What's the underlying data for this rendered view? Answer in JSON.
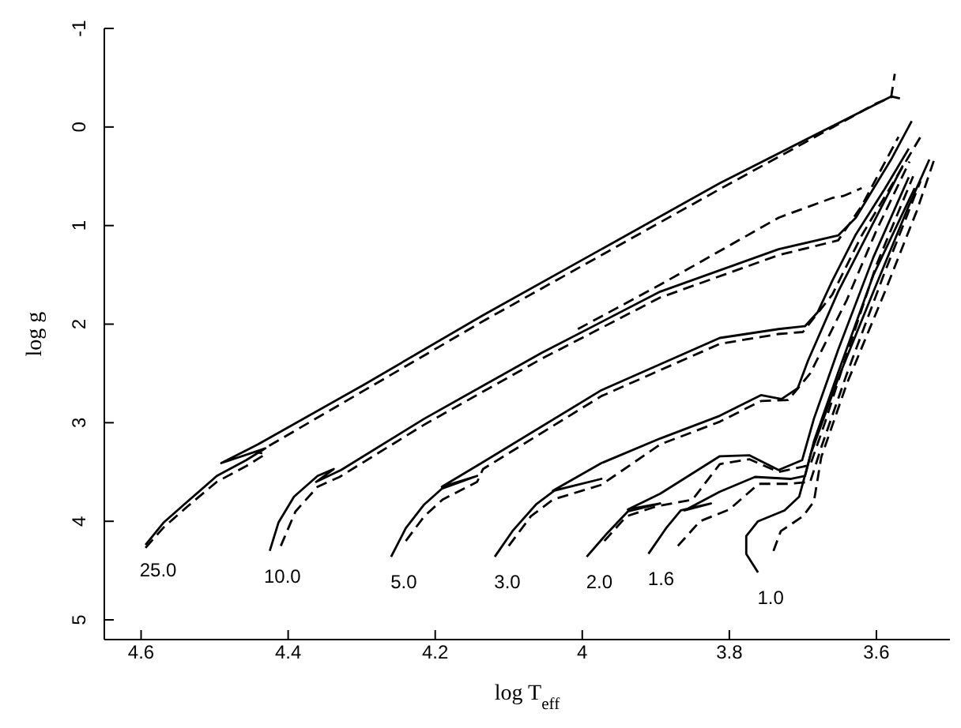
{
  "chart_data": {
    "type": "line",
    "xlabel": "log T$_{eff}$",
    "ylabel": "log g",
    "xlim": [
      4.65,
      3.5
    ],
    "ylim": [
      5.2,
      -1
    ],
    "xticks": [
      4.6,
      4.4,
      4.2,
      4,
      3.8,
      3.6
    ],
    "yticks": [
      -1,
      0,
      1,
      2,
      3,
      4,
      5
    ],
    "grid": false,
    "legend": false,
    "marker": "none",
    "series": [
      {
        "color": "#000000",
        "line_style": "solid",
        "x": [
          4.594,
          4.569,
          4.537,
          4.497,
          4.457,
          4.431,
          4.491,
          4.441,
          4.296,
          4.135,
          3.974,
          3.813,
          3.58,
          3.568
        ],
        "values": [
          4.24,
          4.01,
          3.8,
          3.54,
          3.38,
          3.26,
          3.41,
          3.22,
          2.61,
          1.91,
          1.24,
          0.57,
          -0.31,
          -0.29
        ]
      },
      {
        "color": "#000000",
        "line_style": "dashed",
        "x": [
          4.594,
          4.569,
          4.537,
          4.497,
          4.457,
          4.431,
          4.441,
          4.296,
          4.135,
          3.974,
          3.813,
          3.6,
          3.58,
          3.575
        ],
        "values": [
          4.27,
          4.06,
          3.85,
          3.6,
          3.44,
          3.32,
          3.3,
          2.67,
          1.97,
          1.3,
          0.63,
          -0.24,
          -0.3,
          -0.54
        ]
      },
      {
        "color": "#000000",
        "line_style": "solid",
        "x": [
          4.425,
          4.413,
          4.392,
          4.36,
          4.338,
          4.362,
          4.328,
          4.215,
          4.055,
          3.894,
          3.733,
          3.652,
          3.628,
          3.58,
          3.552
        ],
        "values": [
          4.3,
          4.01,
          3.75,
          3.54,
          3.47,
          3.6,
          3.48,
          2.96,
          2.29,
          1.67,
          1.24,
          1.1,
          0.92,
          0.33,
          -0.06
        ]
      },
      {
        "color": "#000000",
        "line_style": "dashed",
        "x": [
          4.41,
          4.39,
          4.36,
          4.33,
          4.215,
          4.055,
          3.894,
          3.733,
          3.652,
          3.62,
          3.57
        ],
        "values": [
          4.25,
          3.9,
          3.65,
          3.55,
          3.02,
          2.35,
          1.73,
          1.3,
          1.15,
          0.8,
          0.1
        ]
      },
      {
        "color": "#000000",
        "line_style": "dashed",
        "x": [
          4.006,
          3.894,
          3.733,
          3.66,
          3.645,
          3.62
        ],
        "values": [
          2.05,
          1.6,
          0.92,
          0.72,
          0.7,
          0.62
        ]
      },
      {
        "color": "#000000",
        "line_style": "solid",
        "x": [
          4.26,
          4.24,
          4.215,
          4.191,
          4.143,
          4.191,
          4.135,
          3.974,
          3.813,
          3.733,
          3.697,
          3.68,
          3.66,
          3.628,
          3.588,
          3.556
        ],
        "values": [
          4.36,
          4.07,
          3.83,
          3.67,
          3.54,
          3.65,
          3.4,
          2.67,
          2.14,
          2.05,
          2.02,
          1.88,
          1.56,
          1.09,
          0.62,
          0.22
        ]
      },
      {
        "color": "#000000",
        "line_style": "dashed",
        "x": [
          4.24,
          4.215,
          4.19,
          4.143,
          4.135,
          3.974,
          3.813,
          3.733,
          3.7,
          3.66,
          3.62,
          3.58,
          3.54
        ],
        "values": [
          4.2,
          3.95,
          3.78,
          3.6,
          3.47,
          2.73,
          2.2,
          2.1,
          2.08,
          1.7,
          1.1,
          0.6,
          0.1
        ]
      },
      {
        "color": "#000000",
        "line_style": "solid",
        "x": [
          4.119,
          4.095,
          4.063,
          4.038,
          3.974,
          4.04,
          3.974,
          3.894,
          3.813,
          3.757,
          3.729,
          3.707,
          3.693,
          3.652,
          3.604,
          3.564
        ],
        "values": [
          4.36,
          4.1,
          3.83,
          3.69,
          3.57,
          3.69,
          3.41,
          3.16,
          2.93,
          2.72,
          2.76,
          2.65,
          2.37,
          1.67,
          0.97,
          0.39
        ]
      },
      {
        "color": "#000000",
        "line_style": "dashed",
        "x": [
          4.1,
          4.07,
          4.04,
          3.974,
          3.894,
          3.813,
          3.757,
          3.72,
          3.69,
          3.64,
          3.6,
          3.555
        ],
        "values": [
          4.25,
          3.95,
          3.78,
          3.63,
          3.22,
          2.99,
          2.78,
          2.77,
          2.5,
          1.75,
          1.05,
          0.35
        ]
      },
      {
        "color": "#000000",
        "line_style": "solid",
        "x": [
          3.994,
          3.966,
          3.938,
          3.894,
          3.938,
          3.894,
          3.813,
          3.773,
          3.733,
          3.701,
          3.685,
          3.652,
          3.604,
          3.556
        ],
        "values": [
          4.36,
          4.12,
          3.9,
          3.82,
          3.88,
          3.72,
          3.34,
          3.33,
          3.48,
          3.38,
          2.96,
          2.26,
          1.32,
          0.51
        ]
      },
      {
        "color": "#000000",
        "line_style": "dashed",
        "x": [
          3.97,
          3.94,
          3.9,
          3.85,
          3.813,
          3.773,
          3.733,
          3.69,
          3.67,
          3.64,
          3.6,
          3.55
        ],
        "values": [
          4.2,
          3.95,
          3.85,
          3.78,
          3.42,
          3.37,
          3.5,
          3.43,
          3.0,
          2.3,
          1.4,
          0.5
        ]
      },
      {
        "color": "#000000",
        "line_style": "solid",
        "x": [
          3.91,
          3.886,
          3.866,
          3.825,
          3.861,
          3.813,
          3.765,
          3.717,
          3.697,
          3.685,
          3.652,
          3.604,
          3.548
        ],
        "values": [
          4.33,
          4.07,
          3.89,
          3.82,
          3.89,
          3.7,
          3.55,
          3.57,
          3.54,
          3.19,
          2.49,
          1.5,
          0.62
        ]
      },
      {
        "color": "#000000",
        "line_style": "dashed",
        "x": [
          3.87,
          3.84,
          3.8,
          3.76,
          3.72,
          3.69,
          3.675,
          3.64,
          3.59,
          3.54
        ],
        "values": [
          4.25,
          4.0,
          3.88,
          3.62,
          3.62,
          3.6,
          3.25,
          2.5,
          1.5,
          0.55
        ]
      },
      {
        "color": "#000000",
        "line_style": "solid",
        "x": [
          3.761,
          3.777,
          3.777,
          3.761,
          3.725,
          3.705,
          3.689,
          3.652,
          3.604,
          3.556,
          3.528
        ],
        "values": [
          4.52,
          4.33,
          4.15,
          4.0,
          3.89,
          3.75,
          3.31,
          2.55,
          1.67,
          0.8,
          0.33
        ]
      },
      {
        "color": "#000000",
        "line_style": "dashed",
        "x": [
          3.74,
          3.73,
          3.7,
          3.685,
          3.675,
          3.64,
          3.59,
          3.545,
          3.52
        ],
        "values": [
          4.3,
          4.1,
          3.95,
          3.8,
          3.35,
          2.6,
          1.7,
          0.85,
          0.3
        ]
      }
    ],
    "annotations": [
      {
        "text": "25.0",
        "x": 4.594,
        "y": 4.24
      },
      {
        "text": "10.0",
        "x": 4.425,
        "y": 4.3
      },
      {
        "text": "5.0",
        "x": 4.26,
        "y": 4.36
      },
      {
        "text": "3.0",
        "x": 4.119,
        "y": 4.36
      },
      {
        "text": "2.0",
        "x": 3.994,
        "y": 4.36
      },
      {
        "text": "1.6",
        "x": 3.91,
        "y": 4.33
      },
      {
        "text": "1.0",
        "x": 3.761,
        "y": 4.52
      }
    ]
  }
}
